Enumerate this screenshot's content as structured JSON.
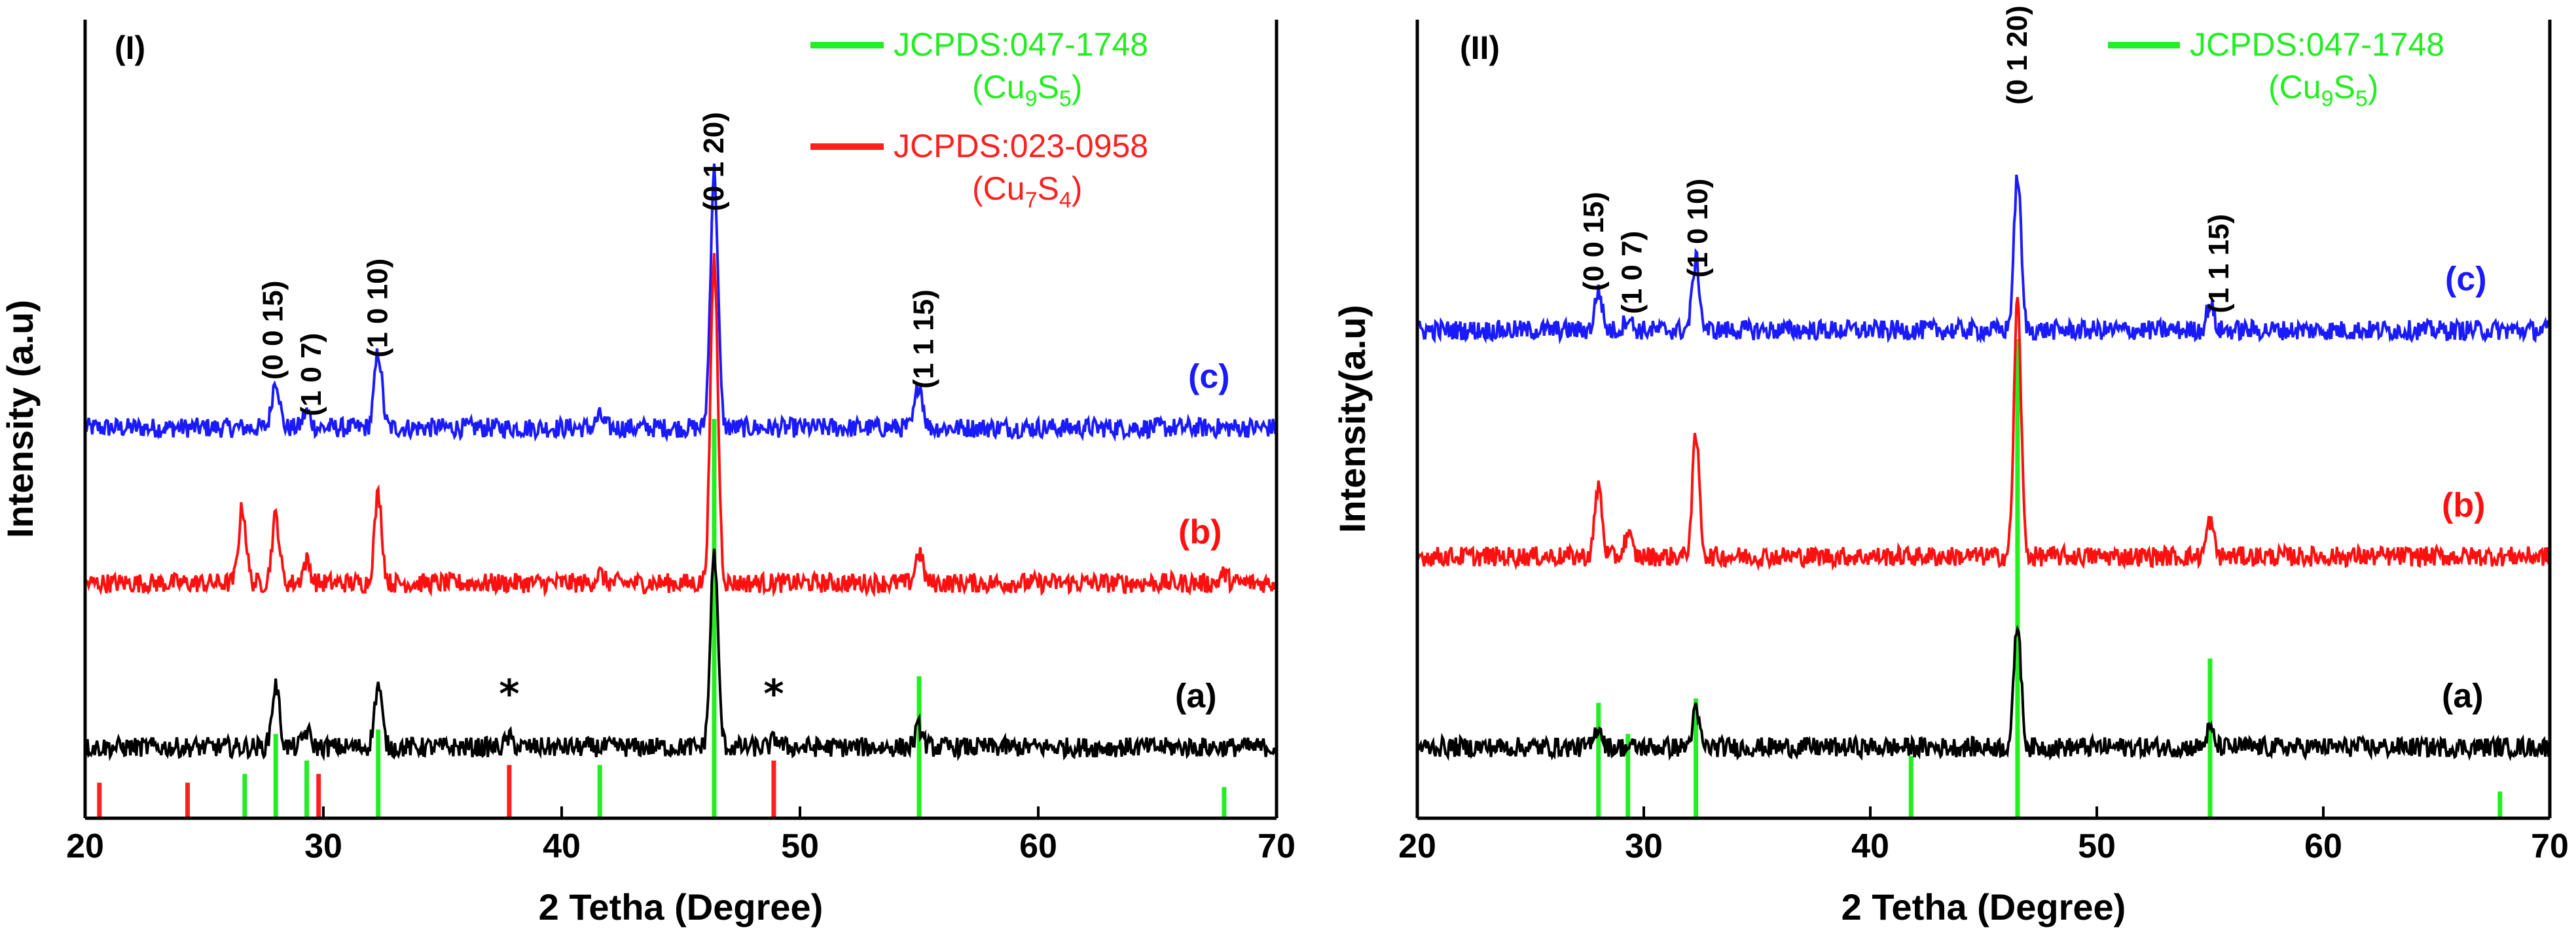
{
  "colors": {
    "blue": "#1a1aff",
    "red": "#ff1010",
    "black": "#000000",
    "green": "#22ee22",
    "reference_red": "#ff2020"
  },
  "chart_data": [
    {
      "type": "line",
      "panel_label": "(I)",
      "xlabel": "2 Tetha (Degree)",
      "ylabel": "Intensity (a.u)",
      "xlim": [
        20,
        70
      ],
      "x_ticks": [
        20,
        30,
        40,
        50,
        60,
        70
      ],
      "x_tick_labels": [
        "20",
        "30",
        "40",
        "50",
        "60",
        "70"
      ],
      "y_ticks_visible": false,
      "legend": [
        {
          "label": "JCPDS:047-1748",
          "formula_base": "Cu",
          "formula_sub1": "9",
          "formula_mid": "S",
          "formula_sub2": "5",
          "color": "#22ee22"
        },
        {
          "label": "JCPDS:023-0958",
          "formula_base": "Cu",
          "formula_sub1": "7",
          "formula_mid": "S",
          "formula_sub2": "4",
          "color": "#ff2020"
        }
      ],
      "series": [
        {
          "name": "(c)",
          "color": "#1a1aff",
          "baseline": 8.8,
          "peaks": [
            [
              28.0,
              1.1
            ],
            [
              29.3,
              0.35
            ],
            [
              32.3,
              1.7
            ],
            [
              41.6,
              0.25
            ],
            [
              46.4,
              5.8
            ],
            [
              55.0,
              1.0
            ]
          ]
        },
        {
          "name": "(b)",
          "color": "#ff1010",
          "baseline": 5.3,
          "peaks": [
            [
              26.6,
              1.7
            ],
            [
              28.0,
              1.5
            ],
            [
              29.3,
              0.5
            ],
            [
              32.3,
              2.0
            ],
            [
              41.6,
              0.2
            ],
            [
              46.4,
              7.3
            ],
            [
              55.0,
              0.7
            ],
            [
              67.8,
              0.2
            ]
          ]
        },
        {
          "name": "(a)",
          "color": "#000000",
          "baseline": 1.6,
          "peaks": [
            [
              28.0,
              1.4
            ],
            [
              29.3,
              0.35
            ],
            [
              32.3,
              1.4
            ],
            [
              37.8,
              0.2
            ],
            [
              46.4,
              4.4
            ],
            [
              49.0,
              0.2
            ],
            [
              55.0,
              0.45
            ]
          ]
        }
      ],
      "references": [
        {
          "name": "JCPDS:047-1748",
          "color": "#22ee22",
          "x": [
            26.7,
            28.0,
            29.3,
            32.3,
            41.6,
            46.4,
            55.0,
            67.8
          ],
          "height": [
            1.0,
            1.9,
            1.3,
            2.0,
            1.2,
            9.0,
            3.2,
            0.7
          ]
        },
        {
          "name": "JCPDS:023-0958",
          "color": "#ff2020",
          "x": [
            20.6,
            24.3,
            29.8,
            37.8,
            48.9
          ],
          "height": [
            0.8,
            0.8,
            1.0,
            1.2,
            1.3
          ]
        }
      ],
      "hkl_labels": [
        {
          "text": "(0 0 15)",
          "x": 27.9,
          "y": 11.0
        },
        {
          "text": "(1 0 7)",
          "x": 29.5,
          "y": 10.0
        },
        {
          "text": "(1 0 10)",
          "x": 32.3,
          "y": 11.5
        },
        {
          "text": "(0 1 20)",
          "x": 46.4,
          "y": 14.8
        },
        {
          "text": "(1 1 15)",
          "x": 55.2,
          "y": 10.8
        }
      ],
      "stars": [
        {
          "text": "*",
          "x": 37.8
        },
        {
          "text": "*",
          "x": 48.9
        }
      ]
    },
    {
      "type": "line",
      "panel_label": "(II)",
      "xlabel": "2 Tetha (Degree)",
      "ylabel": "Intensity(a.u)",
      "xlim": [
        20,
        70
      ],
      "x_ticks": [
        20,
        30,
        40,
        50,
        60,
        70
      ],
      "x_tick_labels": [
        "20",
        "30",
        "40",
        "50",
        "60",
        "70"
      ],
      "y_ticks_visible": false,
      "legend": [
        {
          "label": "JCPDS:047-1748",
          "formula_base": "Cu",
          "formula_sub1": "9",
          "formula_mid": "S",
          "formula_sub2": "5",
          "color": "#22ee22"
        }
      ],
      "series": [
        {
          "name": "(c)",
          "color": "#1a1aff",
          "baseline": 11.0,
          "peaks": [
            [
              28.0,
              0.9
            ],
            [
              29.3,
              0.3
            ],
            [
              32.3,
              1.6
            ],
            [
              46.5,
              3.5
            ],
            [
              55.0,
              0.6
            ]
          ]
        },
        {
          "name": "(b)",
          "color": "#ff1010",
          "baseline": 5.9,
          "peaks": [
            [
              28.0,
              1.6
            ],
            [
              29.3,
              0.5
            ],
            [
              32.3,
              2.7
            ],
            [
              46.5,
              5.8
            ],
            [
              55.0,
              0.8
            ]
          ]
        },
        {
          "name": "(a)",
          "color": "#000000",
          "baseline": 1.6,
          "peaks": [
            [
              28.0,
              0.5
            ],
            [
              32.3,
              0.8
            ],
            [
              46.5,
              2.8
            ],
            [
              55.0,
              0.4
            ]
          ]
        }
      ],
      "references": [
        {
          "name": "JCPDS:047-1748",
          "color": "#22ee22",
          "x": [
            28.0,
            29.3,
            32.3,
            41.8,
            46.5,
            55.0,
            67.8
          ],
          "height": [
            2.6,
            1.9,
            2.7,
            1.4,
            10.8,
            3.6,
            0.6
          ]
        }
      ],
      "hkl_labels": [
        {
          "text": "(0 0 15)",
          "x": 27.8,
          "y": 13.0
        },
        {
          "text": "(1 0 7)",
          "x": 29.5,
          "y": 12.3
        },
        {
          "text": "(1 0 10)",
          "x": 32.4,
          "y": 13.3
        },
        {
          "text": "(0 1 20)",
          "x": 46.5,
          "y": 17.2
        },
        {
          "text": "(1 1 15)",
          "x": 55.4,
          "y": 12.5
        }
      ],
      "stars": []
    }
  ]
}
